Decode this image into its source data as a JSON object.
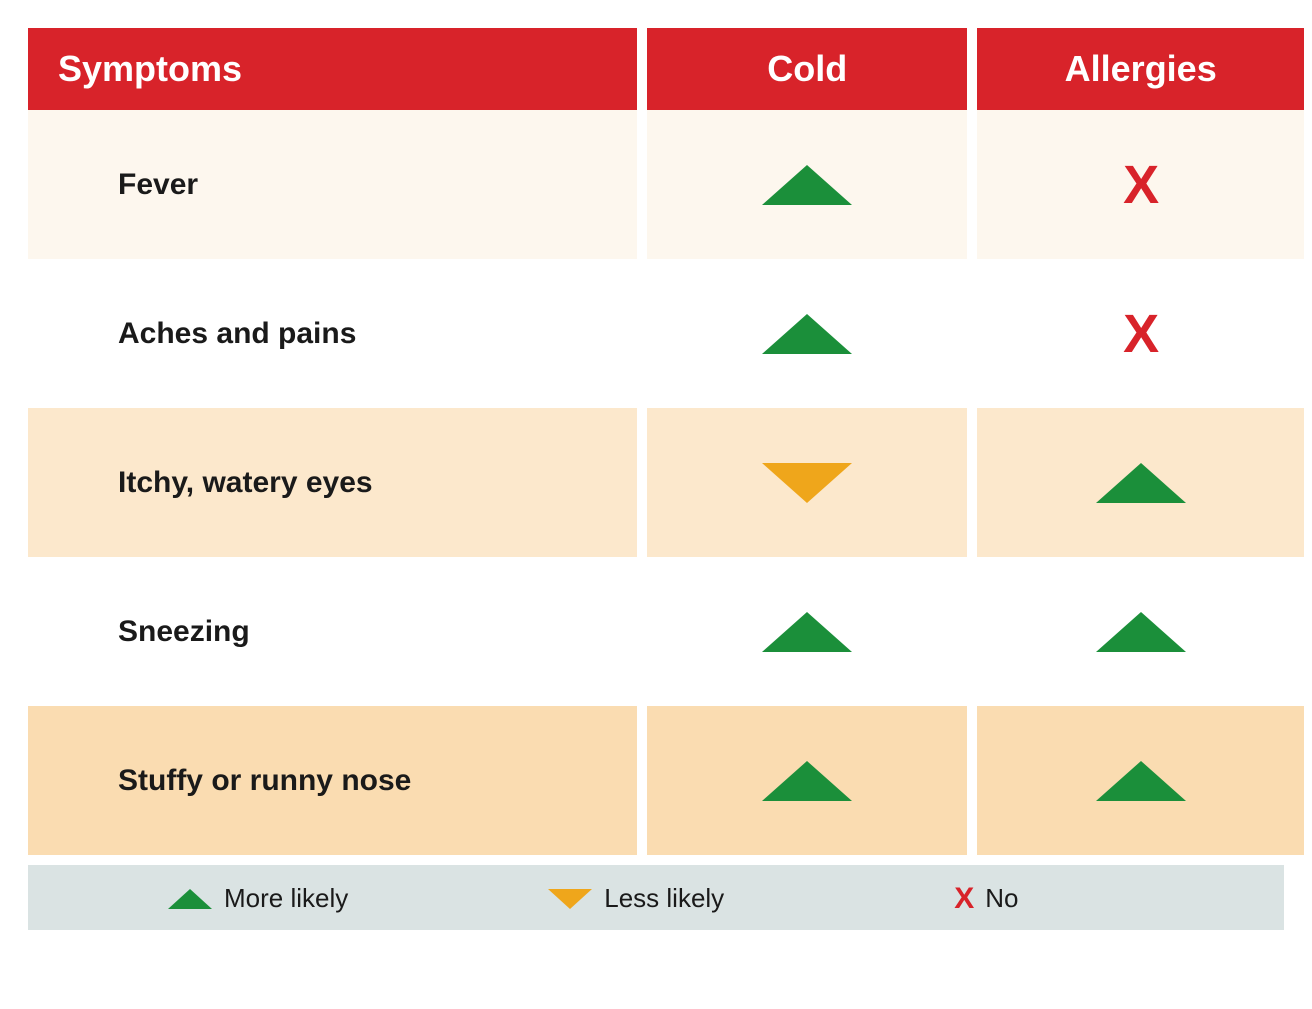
{
  "colors": {
    "header_bg": "#d8232a",
    "header_text": "#ffffff",
    "row_bg_light": "#fdf7ee",
    "row_bg_mid": "#fce8cc",
    "row_bg_dark": "#fadcb1",
    "text": "#1a1a1a",
    "more_likely": "#1b8f3a",
    "less_likely": "#efa61b",
    "no": "#d8232a",
    "legend_bg": "#dae3e3"
  },
  "headers": {
    "symptoms": "Symptoms",
    "cold": "Cold",
    "allergies": "Allergies"
  },
  "rows": [
    {
      "label": "Fever",
      "cold": "more",
      "allergies": "no",
      "bg": "row_bg_light"
    },
    {
      "label": "Aches and pains",
      "cold": "more",
      "allergies": "no",
      "bg": "none"
    },
    {
      "label": "Itchy, watery eyes",
      "cold": "less",
      "allergies": "more",
      "bg": "row_bg_mid"
    },
    {
      "label": "Sneezing",
      "cold": "more",
      "allergies": "more",
      "bg": "none"
    },
    {
      "label": "Stuffy or runny nose",
      "cold": "more",
      "allergies": "more",
      "bg": "row_bg_dark"
    }
  ],
  "legend": {
    "more": "More likely",
    "less": "Less likely",
    "no": "No"
  }
}
